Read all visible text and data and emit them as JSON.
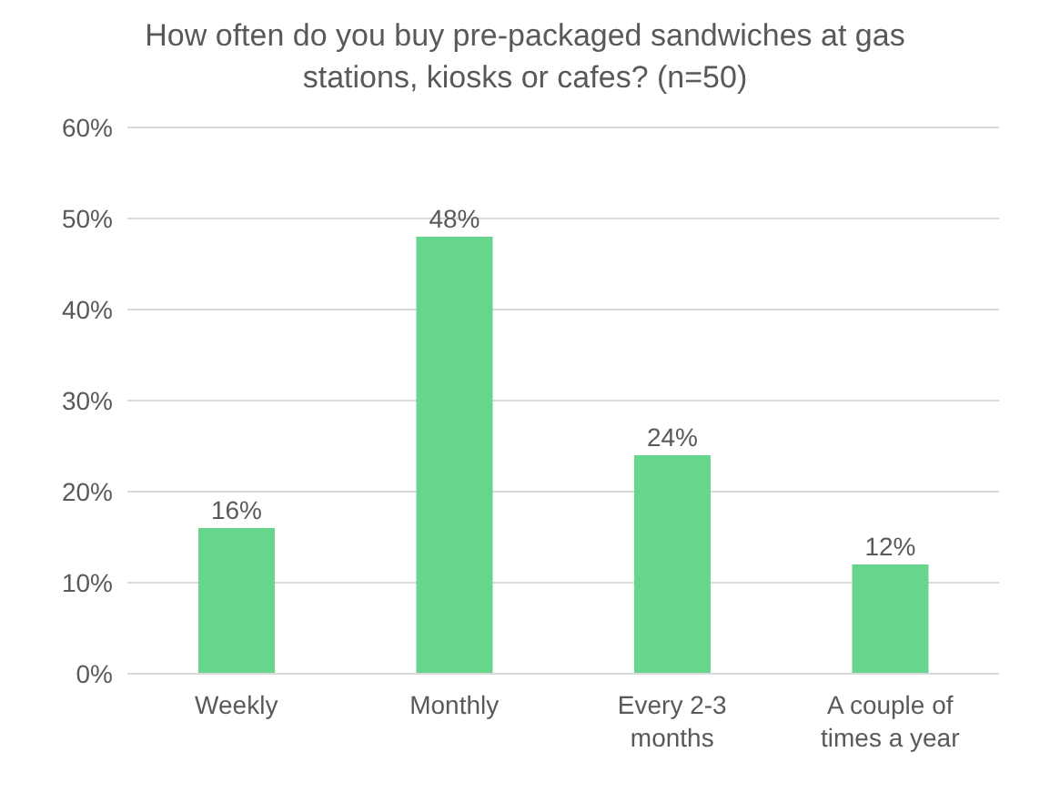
{
  "chart_data": {
    "type": "bar",
    "title": "How often do you buy pre-packaged sandwiches at gas stations, kiosks or cafes? (n=50)",
    "categories": [
      "Weekly",
      "Monthly",
      "Every 2-3 months",
      "A couple of times a year"
    ],
    "values": [
      16,
      48,
      24,
      12
    ],
    "value_labels": [
      "16%",
      "48%",
      "24%",
      "12%"
    ],
    "color": "#66d68c",
    "ylim": [
      0,
      60
    ],
    "yticks": [
      {
        "value": 0,
        "label": "0%"
      },
      {
        "value": 10,
        "label": "10%"
      },
      {
        "value": 20,
        "label": "20%"
      },
      {
        "value": 30,
        "label": "30%"
      },
      {
        "value": 40,
        "label": "40%"
      },
      {
        "value": 50,
        "label": "50%"
      },
      {
        "value": 60,
        "label": "60%"
      }
    ],
    "grid": "y",
    "legend": false
  }
}
